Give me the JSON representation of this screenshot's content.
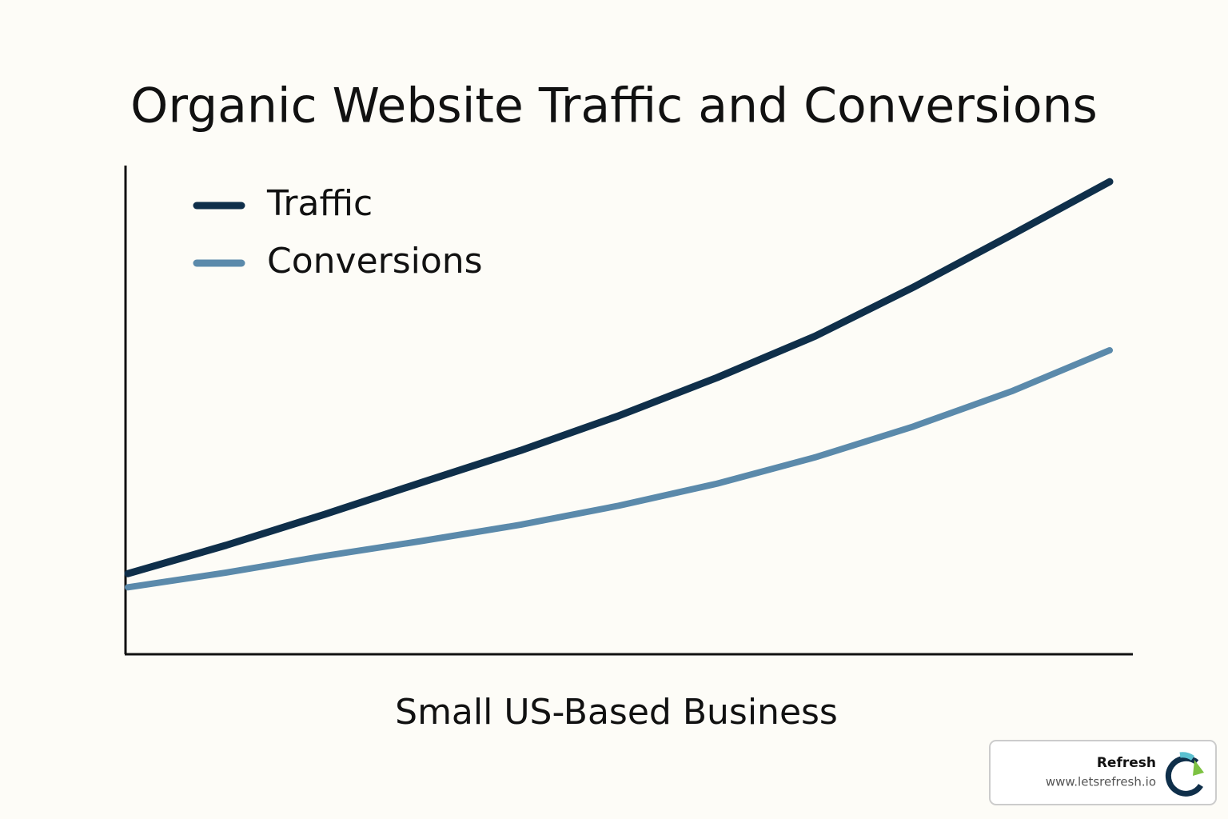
{
  "chart_data": {
    "type": "line",
    "title": "Organic Website Traffic and Conversions",
    "x_label": "Small US-Based Business",
    "categories": [
      null,
      null,
      null,
      null,
      null,
      null,
      null,
      null,
      null,
      null,
      null
    ],
    "series": [
      {
        "name": "Traffic",
        "color": "#0f2f4a",
        "values": [
          16.5,
          22.3,
          28.6,
          35.2,
          41.7,
          48.8,
          56.6,
          65.1,
          75.1,
          85.8,
          96.7
        ]
      },
      {
        "name": "Conversions",
        "color": "#5b8aab",
        "values": [
          13.7,
          16.7,
          20.1,
          23.2,
          26.5,
          30.4,
          34.9,
          40.3,
          46.6,
          53.8,
          62.2
        ]
      }
    ],
    "ylim": [
      0,
      100
    ],
    "grid": false,
    "legend": "top-left"
  },
  "watermark": {
    "brand": "Refresh",
    "url": "www.letsrefresh.io"
  }
}
